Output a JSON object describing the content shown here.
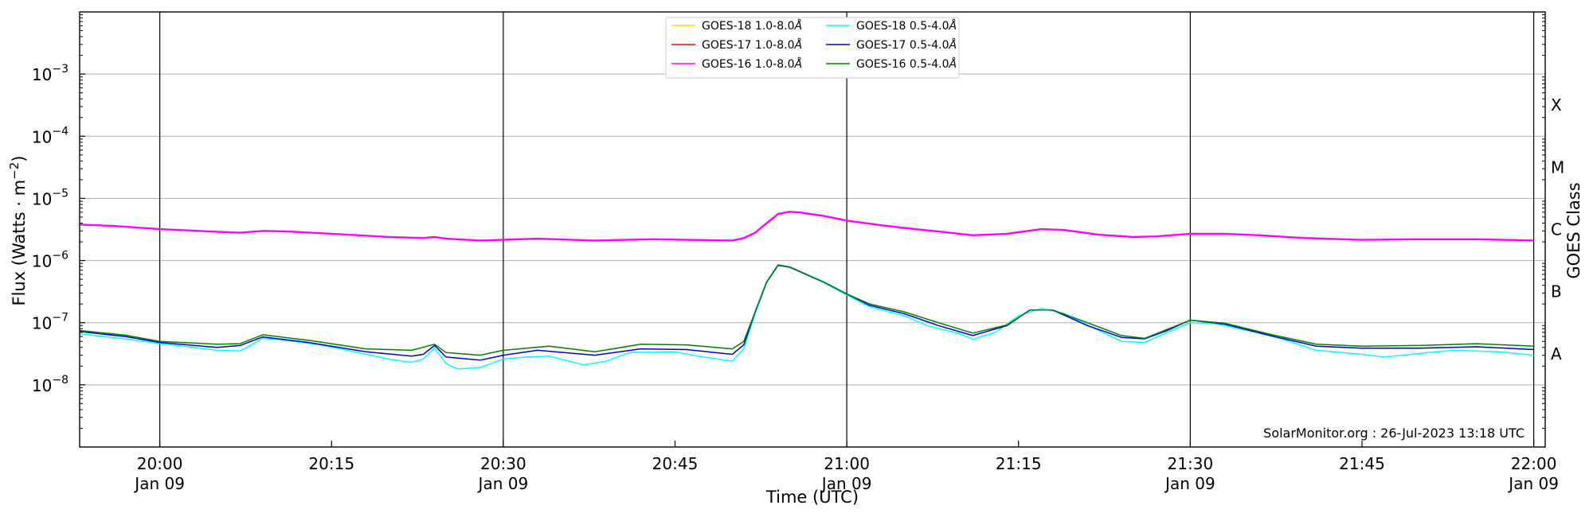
{
  "chart_data": {
    "type": "line",
    "title": "",
    "xlabel": "Time (UTC)",
    "ylabel": "Flux (Watts · m",
    "ylabel_sup": "−2",
    "ylabel_close": ")",
    "right_label": "GOES Class",
    "y_scale": "log",
    "ylim": [
      1e-09,
      0.01
    ],
    "x_start": "2023-01-09 19:53",
    "x_end": "2023-01-09 22:01",
    "grid": "horizontal",
    "legend_position": "top-center",
    "y_ticks": [
      {
        "value": 1e-08,
        "base": "10",
        "exp": "−8"
      },
      {
        "value": 1e-07,
        "base": "10",
        "exp": "−7"
      },
      {
        "value": 1e-06,
        "base": "10",
        "exp": "−6"
      },
      {
        "value": 1e-05,
        "base": "10",
        "exp": "−5"
      },
      {
        "value": 0.0001,
        "base": "10",
        "exp": "−4"
      },
      {
        "value": 0.001,
        "base": "10",
        "exp": "−3"
      }
    ],
    "x_ticks": [
      {
        "time": "2023-01-09 20:00",
        "label": "20:00",
        "date": "Jan 09",
        "vline": true
      },
      {
        "time": "2023-01-09 20:15",
        "label": "20:15",
        "date": "",
        "vline": false
      },
      {
        "time": "2023-01-09 20:30",
        "label": "20:30",
        "date": "Jan 09",
        "vline": true
      },
      {
        "time": "2023-01-09 20:45",
        "label": "20:45",
        "date": "",
        "vline": false
      },
      {
        "time": "2023-01-09 21:00",
        "label": "21:00",
        "date": "Jan 09",
        "vline": true
      },
      {
        "time": "2023-01-09 21:15",
        "label": "21:15",
        "date": "",
        "vline": false
      },
      {
        "time": "2023-01-09 21:30",
        "label": "21:30",
        "date": "Jan 09",
        "vline": true
      },
      {
        "time": "2023-01-09 21:45",
        "label": "21:45",
        "date": "",
        "vline": false
      },
      {
        "time": "2023-01-09 22:00",
        "label": "22:00",
        "date": "Jan 09",
        "vline": true
      }
    ],
    "goes_classes": [
      {
        "label": "A",
        "value": 3.16e-08
      },
      {
        "label": "B",
        "value": 3.16e-07
      },
      {
        "label": "C",
        "value": 3.16e-06
      },
      {
        "label": "M",
        "value": 3.16e-05
      },
      {
        "label": "X",
        "value": 0.000316
      }
    ],
    "credit": "SolarMonitor.org : 26-Jul-2023 13:18 UTC",
    "series": [
      {
        "name": "GOES-18 1.0-8.0",
        "unit": "Å",
        "color": "#ffd700",
        "points": []
      },
      {
        "name": "GOES-17 1.0-8.0",
        "unit": "Å",
        "color": "#ff0000",
        "points": []
      },
      {
        "name": "GOES-16 1.0-8.0",
        "unit": "Å",
        "color": "#ff00ff",
        "points": [
          [
            "2023-01-09 19:53",
            3.8e-06
          ],
          [
            "2023-01-09 19:56",
            3.6e-06
          ],
          [
            "2023-01-09 20:00",
            3.2e-06
          ],
          [
            "2023-01-09 20:05",
            2.9e-06
          ],
          [
            "2023-01-09 20:07",
            2.8e-06
          ],
          [
            "2023-01-09 20:09",
            3e-06
          ],
          [
            "2023-01-09 20:11",
            2.95e-06
          ],
          [
            "2023-01-09 20:15",
            2.7e-06
          ],
          [
            "2023-01-09 20:20",
            2.4e-06
          ],
          [
            "2023-01-09 20:23",
            2.3e-06
          ],
          [
            "2023-01-09 20:24",
            2.4e-06
          ],
          [
            "2023-01-09 20:25",
            2.25e-06
          ],
          [
            "2023-01-09 20:28",
            2.1e-06
          ],
          [
            "2023-01-09 20:33",
            2.25e-06
          ],
          [
            "2023-01-09 20:38",
            2.1e-06
          ],
          [
            "2023-01-09 20:43",
            2.2e-06
          ],
          [
            "2023-01-09 20:50",
            2.1e-06
          ],
          [
            "2023-01-09 20:51",
            2.3e-06
          ],
          [
            "2023-01-09 20:52",
            2.8e-06
          ],
          [
            "2023-01-09 20:53",
            4e-06
          ],
          [
            "2023-01-09 20:54",
            5.6e-06
          ],
          [
            "2023-01-09 20:55",
            6.1e-06
          ],
          [
            "2023-01-09 20:56",
            5.9e-06
          ],
          [
            "2023-01-09 20:58",
            5.2e-06
          ],
          [
            "2023-01-09 21:00",
            4.4e-06
          ],
          [
            "2023-01-09 21:03",
            3.7e-06
          ],
          [
            "2023-01-09 21:06",
            3.2e-06
          ],
          [
            "2023-01-09 21:09",
            2.8e-06
          ],
          [
            "2023-01-09 21:11",
            2.55e-06
          ],
          [
            "2023-01-09 21:14",
            2.7e-06
          ],
          [
            "2023-01-09 21:17",
            3.2e-06
          ],
          [
            "2023-01-09 21:19",
            3.1e-06
          ],
          [
            "2023-01-09 21:22",
            2.6e-06
          ],
          [
            "2023-01-09 21:25",
            2.4e-06
          ],
          [
            "2023-01-09 21:27",
            2.45e-06
          ],
          [
            "2023-01-09 21:30",
            2.7e-06
          ],
          [
            "2023-01-09 21:33",
            2.7e-06
          ],
          [
            "2023-01-09 21:36",
            2.55e-06
          ],
          [
            "2023-01-09 21:40",
            2.3e-06
          ],
          [
            "2023-01-09 21:45",
            2.15e-06
          ],
          [
            "2023-01-09 21:50",
            2.2e-06
          ],
          [
            "2023-01-09 21:55",
            2.2e-06
          ],
          [
            "2023-01-09 22:00",
            2.1e-06
          ]
        ]
      },
      {
        "name": "GOES-18 0.5-4.0",
        "unit": "Å",
        "color": "#00ffff",
        "points": [
          [
            "2023-01-09 19:53",
            6.6e-08
          ],
          [
            "2023-01-09 19:57",
            5.5e-08
          ],
          [
            "2023-01-09 20:00",
            4.6e-08
          ],
          [
            "2023-01-09 20:03",
            4e-08
          ],
          [
            "2023-01-09 20:05",
            3.6e-08
          ],
          [
            "2023-01-09 20:07",
            3.5e-08
          ],
          [
            "2023-01-09 20:09",
            5.6e-08
          ],
          [
            "2023-01-09 20:11",
            5.2e-08
          ],
          [
            "2023-01-09 20:14",
            4.4e-08
          ],
          [
            "2023-01-09 20:17",
            3.4e-08
          ],
          [
            "2023-01-09 20:20",
            2.6e-08
          ],
          [
            "2023-01-09 20:22",
            2.3e-08
          ],
          [
            "2023-01-09 20:23",
            2.6e-08
          ],
          [
            "2023-01-09 20:24",
            3.9e-08
          ],
          [
            "2023-01-09 20:25",
            2.2e-08
          ],
          [
            "2023-01-09 20:26",
            1.8e-08
          ],
          [
            "2023-01-09 20:28",
            1.9e-08
          ],
          [
            "2023-01-09 20:30",
            2.6e-08
          ],
          [
            "2023-01-09 20:32",
            2.8e-08
          ],
          [
            "2023-01-09 20:34",
            2.9e-08
          ],
          [
            "2023-01-09 20:37",
            2.1e-08
          ],
          [
            "2023-01-09 20:39",
            2.4e-08
          ],
          [
            "2023-01-09 20:41",
            3.3e-08
          ],
          [
            "2023-01-09 20:45",
            3.4e-08
          ],
          [
            "2023-01-09 20:47",
            2.9e-08
          ],
          [
            "2023-01-09 20:50",
            2.4e-08
          ],
          [
            "2023-01-09 20:51",
            3.8e-08
          ],
          [
            "2023-01-09 20:52",
            1.4e-07
          ],
          [
            "2023-01-09 20:53",
            4.4e-07
          ],
          [
            "2023-01-09 20:54",
            8.3e-07
          ],
          [
            "2023-01-09 20:55",
            7.8e-07
          ],
          [
            "2023-01-09 20:58",
            4.4e-07
          ],
          [
            "2023-01-09 21:00",
            2.8e-07
          ],
          [
            "2023-01-09 21:02",
            1.8e-07
          ],
          [
            "2023-01-09 21:05",
            1.3e-07
          ],
          [
            "2023-01-09 21:07",
            9e-08
          ],
          [
            "2023-01-09 21:10",
            6.5e-08
          ],
          [
            "2023-01-09 21:11",
            5.4e-08
          ],
          [
            "2023-01-09 21:13",
            7e-08
          ],
          [
            "2023-01-09 21:15",
            1.3e-07
          ],
          [
            "2023-01-09 21:17",
            1.7e-07
          ],
          [
            "2023-01-09 21:19",
            1.4e-07
          ],
          [
            "2023-01-09 21:22",
            7.5e-08
          ],
          [
            "2023-01-09 21:24",
            5e-08
          ],
          [
            "2023-01-09 21:26",
            4.8e-08
          ],
          [
            "2023-01-09 21:28",
            7e-08
          ],
          [
            "2023-01-09 21:30",
            1e-07
          ],
          [
            "2023-01-09 21:32",
            9.8e-08
          ],
          [
            "2023-01-09 21:35",
            7.5e-08
          ],
          [
            "2023-01-09 21:38",
            5.5e-08
          ],
          [
            "2023-01-09 21:41",
            3.6e-08
          ],
          [
            "2023-01-09 21:45",
            3.1e-08
          ],
          [
            "2023-01-09 21:47",
            2.8e-08
          ],
          [
            "2023-01-09 21:50",
            3.2e-08
          ],
          [
            "2023-01-09 21:53",
            3.6e-08
          ],
          [
            "2023-01-09 21:57",
            3.4e-08
          ],
          [
            "2023-01-09 22:00",
            3e-08
          ]
        ]
      },
      {
        "name": "GOES-17 0.5-4.0",
        "unit": "Å",
        "color": "#0000cd",
        "points": [
          [
            "2023-01-09 19:53",
            7.2e-08
          ],
          [
            "2023-01-09 19:57",
            6e-08
          ],
          [
            "2023-01-09 20:00",
            4.8e-08
          ],
          [
            "2023-01-09 20:05",
            4e-08
          ],
          [
            "2023-01-09 20:07",
            4.3e-08
          ],
          [
            "2023-01-09 20:09",
            5.9e-08
          ],
          [
            "2023-01-09 20:13",
            4.8e-08
          ],
          [
            "2023-01-09 20:18",
            3.4e-08
          ],
          [
            "2023-01-09 20:22",
            2.9e-08
          ],
          [
            "2023-01-09 20:23",
            3.1e-08
          ],
          [
            "2023-01-09 20:24",
            4.3e-08
          ],
          [
            "2023-01-09 20:25",
            2.8e-08
          ],
          [
            "2023-01-09 20:28",
            2.5e-08
          ],
          [
            "2023-01-09 20:30",
            3e-08
          ],
          [
            "2023-01-09 20:33",
            3.6e-08
          ],
          [
            "2023-01-09 20:38",
            3e-08
          ],
          [
            "2023-01-09 20:42",
            3.8e-08
          ],
          [
            "2023-01-09 20:46",
            3.7e-08
          ],
          [
            "2023-01-09 20:50",
            3.1e-08
          ],
          [
            "2023-01-09 20:51",
            4.4e-08
          ],
          [
            "2023-01-09 20:52",
            1.5e-07
          ],
          [
            "2023-01-09 20:53",
            4.5e-07
          ],
          [
            "2023-01-09 20:54",
            8.5e-07
          ],
          [
            "2023-01-09 20:55",
            7.9e-07
          ],
          [
            "2023-01-09 20:58",
            4.5e-07
          ],
          [
            "2023-01-09 21:00",
            2.9e-07
          ],
          [
            "2023-01-09 21:02",
            1.9e-07
          ],
          [
            "2023-01-09 21:05",
            1.4e-07
          ],
          [
            "2023-01-09 21:08",
            9e-08
          ],
          [
            "2023-01-09 21:11",
            6.2e-08
          ],
          [
            "2023-01-09 21:14",
            9e-08
          ],
          [
            "2023-01-09 21:16",
            1.6e-07
          ],
          [
            "2023-01-09 21:18",
            1.6e-07
          ],
          [
            "2023-01-09 21:21",
            9e-08
          ],
          [
            "2023-01-09 21:24",
            5.8e-08
          ],
          [
            "2023-01-09 21:26",
            5.5e-08
          ],
          [
            "2023-01-09 21:28",
            7.5e-08
          ],
          [
            "2023-01-09 21:30",
            1.1e-07
          ],
          [
            "2023-01-09 21:33",
            9.5e-08
          ],
          [
            "2023-01-09 21:37",
            6.2e-08
          ],
          [
            "2023-01-09 21:41",
            4.2e-08
          ],
          [
            "2023-01-09 21:45",
            3.9e-08
          ],
          [
            "2023-01-09 21:50",
            3.9e-08
          ],
          [
            "2023-01-09 21:55",
            4.1e-08
          ],
          [
            "2023-01-09 22:00",
            3.7e-08
          ]
        ]
      },
      {
        "name": "GOES-16 0.5-4.0",
        "unit": "Å",
        "color": "#008000",
        "points": [
          [
            "2023-01-09 19:53",
            7.5e-08
          ],
          [
            "2023-01-09 19:57",
            6.3e-08
          ],
          [
            "2023-01-09 20:00",
            5e-08
          ],
          [
            "2023-01-09 20:05",
            4.5e-08
          ],
          [
            "2023-01-09 20:07",
            4.6e-08
          ],
          [
            "2023-01-09 20:09",
            6.4e-08
          ],
          [
            "2023-01-09 20:13",
            5.2e-08
          ],
          [
            "2023-01-09 20:18",
            3.8e-08
          ],
          [
            "2023-01-09 20:22",
            3.6e-08
          ],
          [
            "2023-01-09 20:24",
            4.5e-08
          ],
          [
            "2023-01-09 20:25",
            3.3e-08
          ],
          [
            "2023-01-09 20:28",
            3e-08
          ],
          [
            "2023-01-09 20:30",
            3.6e-08
          ],
          [
            "2023-01-09 20:34",
            4.2e-08
          ],
          [
            "2023-01-09 20:38",
            3.4e-08
          ],
          [
            "2023-01-09 20:42",
            4.5e-08
          ],
          [
            "2023-01-09 20:46",
            4.4e-08
          ],
          [
            "2023-01-09 20:50",
            3.8e-08
          ],
          [
            "2023-01-09 20:51",
            5e-08
          ],
          [
            "2023-01-09 20:52",
            1.5e-07
          ],
          [
            "2023-01-09 20:53",
            4.5e-07
          ],
          [
            "2023-01-09 20:54",
            8.4e-07
          ],
          [
            "2023-01-09 20:55",
            7.8e-07
          ],
          [
            "2023-01-09 20:58",
            4.5e-07
          ],
          [
            "2023-01-09 21:00",
            2.9e-07
          ],
          [
            "2023-01-09 21:02",
            2e-07
          ],
          [
            "2023-01-09 21:05",
            1.5e-07
          ],
          [
            "2023-01-09 21:08",
            1e-07
          ],
          [
            "2023-01-09 21:11",
            6.8e-08
          ],
          [
            "2023-01-09 21:14",
            9.2e-08
          ],
          [
            "2023-01-09 21:16",
            1.6e-07
          ],
          [
            "2023-01-09 21:18",
            1.6e-07
          ],
          [
            "2023-01-09 21:21",
            1e-07
          ],
          [
            "2023-01-09 21:24",
            6.2e-08
          ],
          [
            "2023-01-09 21:26",
            5.6e-08
          ],
          [
            "2023-01-09 21:28",
            7.8e-08
          ],
          [
            "2023-01-09 21:30",
            1.1e-07
          ],
          [
            "2023-01-09 21:33",
            9.8e-08
          ],
          [
            "2023-01-09 21:37",
            6.5e-08
          ],
          [
            "2023-01-09 21:41",
            4.5e-08
          ],
          [
            "2023-01-09 21:45",
            4.2e-08
          ],
          [
            "2023-01-09 21:50",
            4.3e-08
          ],
          [
            "2023-01-09 21:55",
            4.6e-08
          ],
          [
            "2023-01-09 22:00",
            4.2e-08
          ]
        ]
      }
    ]
  }
}
